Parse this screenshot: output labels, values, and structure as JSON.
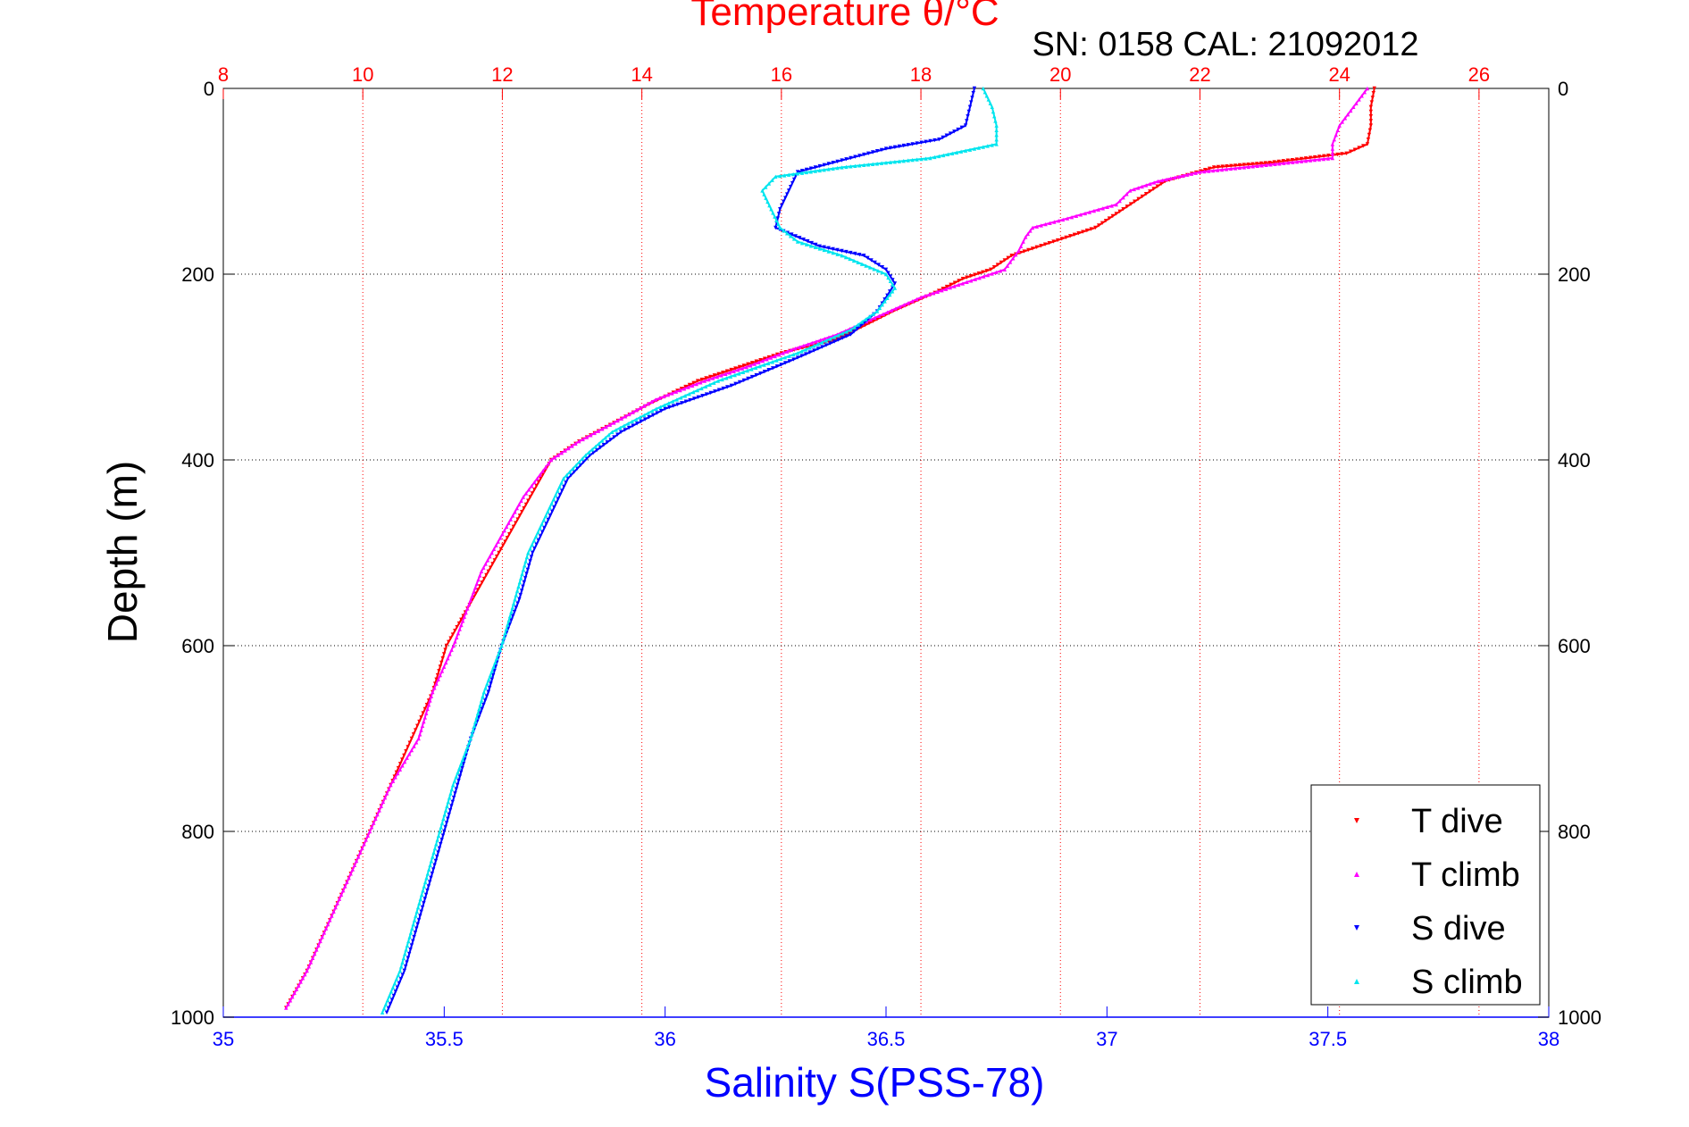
{
  "chart_data": {
    "type": "scatter",
    "title": "Temperature θ/°C",
    "subtitle": "SN: 0158  CAL: 21092012",
    "xlabel": "Salinity S(PSS-78)",
    "ylabel": "Depth (m)",
    "x_bottom": {
      "range": [
        35,
        38
      ],
      "ticks": [
        "35",
        "35.5",
        "36",
        "36.5",
        "37",
        "37.5",
        "38"
      ],
      "color": "#0000ff"
    },
    "x_top": {
      "range": [
        8,
        27
      ],
      "ticks": [
        "8",
        "10",
        "12",
        "14",
        "16",
        "18",
        "20",
        "22",
        "24",
        "26"
      ],
      "color": "#ff0000"
    },
    "y": {
      "range": [
        0,
        1000
      ],
      "reversed": true,
      "ticks": [
        "0",
        "200",
        "400",
        "600",
        "800",
        "1000"
      ]
    },
    "grid": true,
    "legend_position": "bottom-right",
    "series": [
      {
        "name": "T dive",
        "axis": "top",
        "color": "#ff0000",
        "marker": "triangle-down",
        "points": [
          [
            24.5,
            0
          ],
          [
            24.45,
            20
          ],
          [
            24.45,
            40
          ],
          [
            24.4,
            60
          ],
          [
            24.1,
            70
          ],
          [
            23.0,
            80
          ],
          [
            22.2,
            85
          ],
          [
            21.5,
            100
          ],
          [
            20.9,
            130
          ],
          [
            20.5,
            150
          ],
          [
            19.9,
            165
          ],
          [
            19.3,
            180
          ],
          [
            19.0,
            195
          ],
          [
            18.6,
            205
          ],
          [
            18.2,
            220
          ],
          [
            17.6,
            240
          ],
          [
            17.2,
            255
          ],
          [
            16.8,
            270
          ],
          [
            16.0,
            285
          ],
          [
            15.4,
            300
          ],
          [
            14.8,
            315
          ],
          [
            14.1,
            340
          ],
          [
            13.6,
            360
          ],
          [
            13.1,
            380
          ],
          [
            12.7,
            400
          ],
          [
            12.4,
            440
          ],
          [
            12.1,
            480
          ],
          [
            11.8,
            520
          ],
          [
            11.5,
            560
          ],
          [
            11.2,
            600
          ],
          [
            11.0,
            650
          ],
          [
            10.7,
            700
          ],
          [
            10.4,
            750
          ],
          [
            10.1,
            800
          ],
          [
            9.8,
            850
          ],
          [
            9.5,
            900
          ],
          [
            9.2,
            950
          ],
          [
            8.9,
            990
          ]
        ]
      },
      {
        "name": "T climb",
        "axis": "top",
        "color": "#ff00ff",
        "marker": "triangle-up",
        "points": [
          [
            24.4,
            0
          ],
          [
            24.2,
            20
          ],
          [
            24.0,
            40
          ],
          [
            23.9,
            60
          ],
          [
            23.9,
            75
          ],
          [
            22.0,
            90
          ],
          [
            21.4,
            100
          ],
          [
            21.0,
            110
          ],
          [
            20.8,
            125
          ],
          [
            20.1,
            140
          ],
          [
            19.6,
            150
          ],
          [
            19.5,
            160
          ],
          [
            19.4,
            175
          ],
          [
            19.2,
            195
          ],
          [
            18.6,
            210
          ],
          [
            18.0,
            225
          ],
          [
            17.4,
            245
          ],
          [
            16.8,
            265
          ],
          [
            16.2,
            280
          ],
          [
            15.5,
            300
          ],
          [
            14.9,
            315
          ],
          [
            14.2,
            335
          ],
          [
            13.6,
            360
          ],
          [
            13.1,
            380
          ],
          [
            12.7,
            400
          ],
          [
            12.3,
            440
          ],
          [
            12.0,
            480
          ],
          [
            11.7,
            520
          ],
          [
            11.5,
            560
          ],
          [
            11.3,
            600
          ],
          [
            11.0,
            650
          ],
          [
            10.8,
            700
          ],
          [
            10.4,
            750
          ],
          [
            10.1,
            800
          ],
          [
            9.8,
            850
          ],
          [
            9.5,
            900
          ],
          [
            9.2,
            950
          ],
          [
            8.9,
            990
          ]
        ]
      },
      {
        "name": "S dive",
        "axis": "bottom",
        "color": "#0000ff",
        "marker": "triangle-down",
        "points": [
          [
            36.7,
            0
          ],
          [
            36.69,
            20
          ],
          [
            36.68,
            40
          ],
          [
            36.62,
            55
          ],
          [
            36.5,
            65
          ],
          [
            36.38,
            80
          ],
          [
            36.3,
            90
          ],
          [
            36.28,
            110
          ],
          [
            36.26,
            130
          ],
          [
            36.25,
            150
          ],
          [
            36.35,
            170
          ],
          [
            36.45,
            180
          ],
          [
            36.5,
            195
          ],
          [
            36.52,
            210
          ],
          [
            36.48,
            240
          ],
          [
            36.42,
            265
          ],
          [
            36.3,
            290
          ],
          [
            36.15,
            320
          ],
          [
            36.0,
            345
          ],
          [
            35.9,
            370
          ],
          [
            35.83,
            395
          ],
          [
            35.78,
            420
          ],
          [
            35.74,
            460
          ],
          [
            35.7,
            500
          ],
          [
            35.67,
            550
          ],
          [
            35.63,
            600
          ],
          [
            35.6,
            650
          ],
          [
            35.56,
            700
          ],
          [
            35.53,
            750
          ],
          [
            35.5,
            800
          ],
          [
            35.47,
            850
          ],
          [
            35.44,
            900
          ],
          [
            35.41,
            950
          ],
          [
            35.37,
            995
          ]
        ]
      },
      {
        "name": "S climb",
        "axis": "bottom",
        "color": "#00e5ee",
        "marker": "triangle-up",
        "points": [
          [
            36.72,
            0
          ],
          [
            36.74,
            20
          ],
          [
            36.75,
            40
          ],
          [
            36.75,
            60
          ],
          [
            36.6,
            75
          ],
          [
            36.4,
            85
          ],
          [
            36.25,
            95
          ],
          [
            36.22,
            110
          ],
          [
            36.24,
            130
          ],
          [
            36.26,
            150
          ],
          [
            36.3,
            165
          ],
          [
            36.4,
            180
          ],
          [
            36.5,
            200
          ],
          [
            36.52,
            215
          ],
          [
            36.48,
            240
          ],
          [
            36.42,
            260
          ],
          [
            36.3,
            285
          ],
          [
            36.12,
            315
          ],
          [
            35.98,
            345
          ],
          [
            35.88,
            370
          ],
          [
            35.82,
            395
          ],
          [
            35.77,
            420
          ],
          [
            35.73,
            460
          ],
          [
            35.69,
            500
          ],
          [
            35.66,
            550
          ],
          [
            35.63,
            600
          ],
          [
            35.59,
            650
          ],
          [
            35.56,
            700
          ],
          [
            35.52,
            750
          ],
          [
            35.49,
            800
          ],
          [
            35.46,
            850
          ],
          [
            35.43,
            900
          ],
          [
            35.4,
            950
          ],
          [
            35.36,
            995
          ]
        ]
      }
    ]
  }
}
